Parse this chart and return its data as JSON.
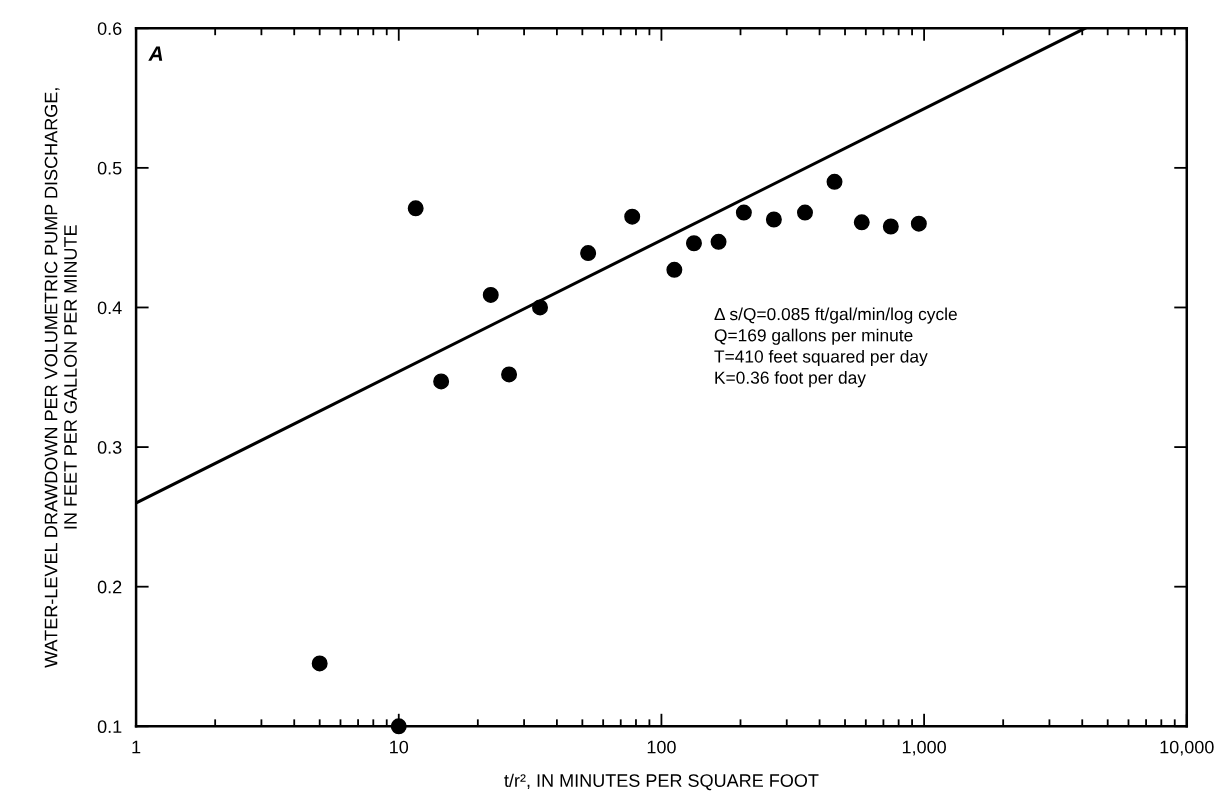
{
  "chart_data": {
    "type": "scatter",
    "xlabel": "t/r², IN MINUTES PER SQUARE FOOT",
    "ylabel": "WATER-LEVEL DRAWDOWN PER VOLUMETRIC PUMP DISCHARGE,\nIN FEET PER GALLON PER MINUTE",
    "log": "x",
    "grid": false,
    "xlim": [
      1,
      10000
    ],
    "xticks": [
      1,
      10,
      100,
      {
        "value": 1000,
        "label": "1,000"
      },
      {
        "value": 10000,
        "label": "10,000"
      }
    ],
    "ylim": [
      0.1,
      0.6
    ],
    "yticks": [
      0.1,
      0.2,
      0.3,
      0.4,
      0.5,
      0.6
    ],
    "series": [
      {
        "color": "#000000",
        "marker": "circle",
        "x": [
          5.0,
          10,
          11.6,
          14.5,
          22.4,
          26.3,
          34.5,
          52.6,
          77.4,
          112,
          133,
          165,
          206,
          268,
          352,
          456,
          579,
          747,
          955
        ],
        "values": [
          0.145,
          0.1,
          0.471,
          0.347,
          0.409,
          0.352,
          0.4,
          0.439,
          0.465,
          0.427,
          0.446,
          0.447,
          0.468,
          0.463,
          0.468,
          0.49,
          0.461,
          0.458,
          0.46
        ]
      },
      {
        "type": "line",
        "color": "#000000",
        "line_style": "solid",
        "x": [
          1,
          4100
        ],
        "values": [
          0.26,
          0.6
        ]
      }
    ],
    "annotations": [
      "A",
      "Δ s/Q=0.085 ft/gal/min/log cycle\nQ=169 gallons per minute\nT=410 feet squared per day\nK=0.36 foot per day"
    ]
  }
}
